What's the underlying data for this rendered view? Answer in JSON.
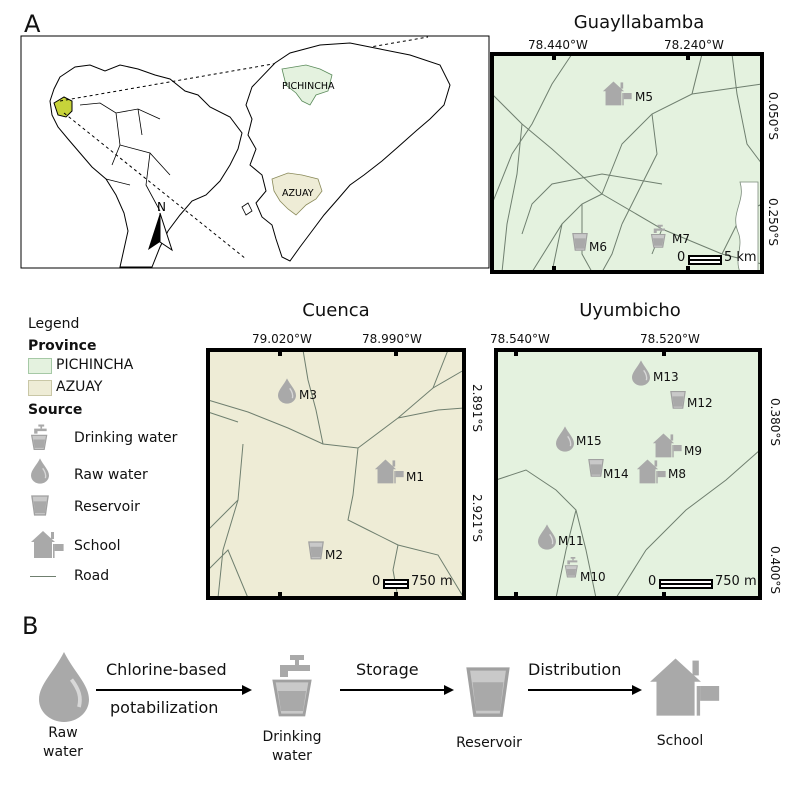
{
  "panel_a": {
    "letter": "A",
    "overview": {
      "north_label": "N",
      "province_labels": [
        "PICHINCHA",
        "AZUAY"
      ]
    },
    "maps": [
      {
        "id": "guayllabamba",
        "title": "Guayllabamba",
        "lon_ticks": [
          "78.440°W",
          "78.240°W"
        ],
        "lat_ticks": [
          "0.050°S",
          "0.250°S"
        ],
        "scale_label": "5 km",
        "scale_zero": "0",
        "fill_color": "#e4f2df",
        "markers": [
          {
            "label": "M5",
            "type": "school"
          },
          {
            "label": "M6",
            "type": "reservoir"
          },
          {
            "label": "M7",
            "type": "drinking-water"
          }
        ]
      },
      {
        "id": "cuenca",
        "title": "Cuenca",
        "lon_ticks": [
          "79.020°W",
          "78.990°W"
        ],
        "lat_ticks": [
          "2.891°S",
          "2.921°S"
        ],
        "scale_label": "750 m",
        "scale_zero": "0",
        "fill_color": "#eeecd6",
        "markers": [
          {
            "label": "M3",
            "type": "raw-water"
          },
          {
            "label": "M1",
            "type": "school"
          },
          {
            "label": "M2",
            "type": "reservoir"
          }
        ]
      },
      {
        "id": "uyumbicho",
        "title": "Uyumbicho",
        "lon_ticks": [
          "78.540°W",
          "78.520°W"
        ],
        "lat_ticks": [
          "0.380°S",
          "0.400°S"
        ],
        "scale_label": "750 m",
        "scale_zero": "0",
        "fill_color": "#e4f2df",
        "markers": [
          {
            "label": "M13",
            "type": "raw-water"
          },
          {
            "label": "M12",
            "type": "reservoir"
          },
          {
            "label": "M15",
            "type": "raw-water"
          },
          {
            "label": "M9",
            "type": "school"
          },
          {
            "label": "M14",
            "type": "reservoir"
          },
          {
            "label": "M8",
            "type": "school"
          },
          {
            "label": "M11",
            "type": "raw-water"
          },
          {
            "label": "M10",
            "type": "drinking-water"
          }
        ]
      }
    ],
    "legend": {
      "title": "Legend",
      "province_heading": "Province",
      "provinces": [
        {
          "name": "PICHINCHA",
          "color": "#e4f2df"
        },
        {
          "name": "AZUAY",
          "color": "#eeecd6"
        }
      ],
      "source_heading": "Source",
      "sources": [
        "Drinking water",
        "Raw water",
        "Reservoir",
        "School",
        "Road"
      ]
    }
  },
  "panel_b": {
    "letter": "B",
    "steps": [
      {
        "caption": "Raw\nwater",
        "icon": "raw-water"
      },
      {
        "caption": "Drinking\nwater",
        "icon": "drinking-water"
      },
      {
        "caption": "Reservoir",
        "icon": "reservoir"
      },
      {
        "caption": "School",
        "icon": "school"
      }
    ],
    "arrows": [
      {
        "label_top": "Chlorine-based",
        "label_bottom": "potabilization"
      },
      {
        "label_top": "Storage"
      },
      {
        "label_top": "Distribution"
      }
    ]
  },
  "colors": {
    "icon_gray": "#a9a9a9",
    "road": "#6f7f6f",
    "pichincha": "#e4f2df",
    "azuay": "#eeecd6",
    "ecuador_highlight": "#c7d33a"
  }
}
